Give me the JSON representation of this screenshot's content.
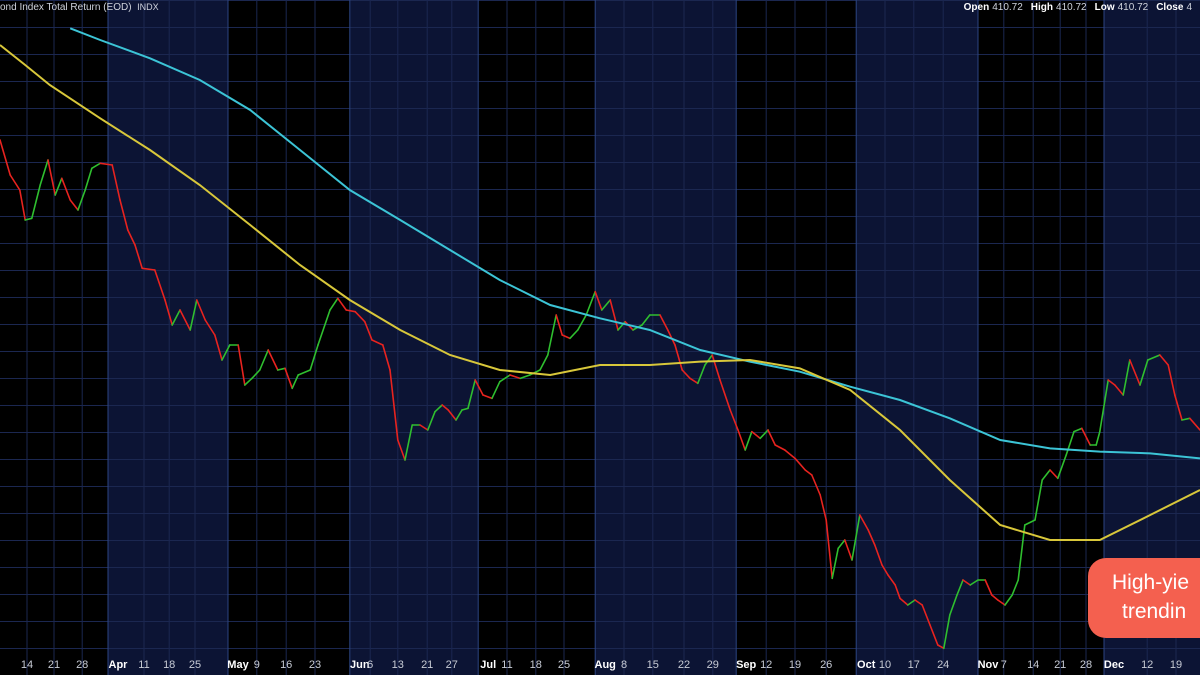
{
  "chart_data": {
    "type": "line",
    "title": "ond Index Total Return (EOD)",
    "exchange": "INDX",
    "ohlc": [
      {
        "label": "Open",
        "value": "410.72"
      },
      {
        "label": "High",
        "value": "410.72"
      },
      {
        "label": "Low",
        "value": "410.72"
      },
      {
        "label": "Close",
        "value": "4"
      }
    ],
    "annotation": [
      "High-yie",
      "trendin"
    ],
    "xlim": [
      0,
      200
    ],
    "ylim": [
      379,
      460
    ],
    "xticks": [
      {
        "value": 4.5,
        "label": "14"
      },
      {
        "value": 9,
        "label": "21"
      },
      {
        "value": 13.7,
        "label": "28"
      },
      {
        "value": 18,
        "label": "Apr"
      },
      {
        "value": 24,
        "label": "11"
      },
      {
        "value": 28.2,
        "label": "18"
      },
      {
        "value": 32.5,
        "label": "25"
      },
      {
        "value": 38,
        "label": "May"
      },
      {
        "value": 42.8,
        "label": "9"
      },
      {
        "value": 47.7,
        "label": "16"
      },
      {
        "value": 52.5,
        "label": "23"
      },
      {
        "value": 58.3,
        "label": "Jun"
      },
      {
        "value": 61.7,
        "label": "6"
      },
      {
        "value": 66.3,
        "label": "13"
      },
      {
        "value": 71.2,
        "label": "21"
      },
      {
        "value": 75.3,
        "label": "27"
      },
      {
        "value": 79.7,
        "label": "Jul"
      },
      {
        "value": 84.5,
        "label": "11"
      },
      {
        "value": 89.3,
        "label": "18"
      },
      {
        "value": 94,
        "label": "25"
      },
      {
        "value": 99.2,
        "label": "Aug"
      },
      {
        "value": 104,
        "label": "8"
      },
      {
        "value": 108.8,
        "label": "15"
      },
      {
        "value": 114,
        "label": "22"
      },
      {
        "value": 118.8,
        "label": "29"
      },
      {
        "value": 122.7,
        "label": "Sep"
      },
      {
        "value": 127.7,
        "label": "12"
      },
      {
        "value": 132.5,
        "label": "19"
      },
      {
        "value": 137.7,
        "label": "26"
      },
      {
        "value": 142.7,
        "label": "Oct"
      },
      {
        "value": 147.5,
        "label": "10"
      },
      {
        "value": 152.3,
        "label": "17"
      },
      {
        "value": 157.2,
        "label": "24"
      },
      {
        "value": 163,
        "label": "Nov"
      },
      {
        "value": 167.3,
        "label": "7"
      },
      {
        "value": 172.2,
        "label": "14"
      },
      {
        "value": 176.7,
        "label": "21"
      },
      {
        "value": 181,
        "label": "28"
      },
      {
        "value": 184,
        "label": "Dec"
      },
      {
        "value": 191.2,
        "label": "12"
      },
      {
        "value": 196,
        "label": "19"
      }
    ],
    "series": [
      {
        "kind": "price",
        "up_color": "#2fbf2f",
        "down_color": "#e8231f",
        "x": [
          0,
          1.7,
          3.3,
          4.2,
          5.3,
          6.7,
          8,
          9.2,
          10.3,
          11.7,
          13,
          14.2,
          15.3,
          16.7,
          18.7,
          20,
          21.3,
          22.5,
          23.7,
          25.8,
          27.5,
          28.7,
          30,
          31.7,
          32.8,
          34.2,
          35.8,
          37,
          38.3,
          39.7,
          40.8,
          42,
          43.3,
          44.7,
          46.3,
          47.5,
          48.7,
          49.7,
          51.7,
          53,
          55,
          56.3,
          57.7,
          59.2,
          60.8,
          62,
          63.8,
          65,
          66.3,
          67.5,
          68.7,
          70,
          71.3,
          72.5,
          73.7,
          74.7,
          76,
          77,
          78,
          79.2,
          80.5,
          82,
          83.3,
          85,
          86.7,
          88.3,
          90,
          91.3,
          92.7,
          93.7,
          95,
          96.3,
          97.7,
          99.2,
          100.3,
          101.7,
          103,
          104.2,
          105.5,
          107,
          108.3,
          110,
          111.3,
          112.5,
          113.7,
          115,
          116.3,
          117.5,
          118.7,
          120,
          121.7,
          123,
          124.2,
          125.3,
          126.7,
          128,
          129.2,
          130.8,
          132.5,
          134.2,
          135.3,
          136.7,
          137.7,
          138.7,
          139.7,
          140.8,
          142,
          143.3,
          144.7,
          145.8,
          147,
          148,
          149.2,
          150,
          151.3,
          152.5,
          153.7,
          155,
          156.3,
          157.3,
          158.3,
          159.5,
          160.5,
          161.7,
          163,
          164.2,
          165.3,
          166.3,
          167.5,
          168.7,
          169.7,
          170.8,
          172.5,
          173.7,
          175,
          176.3,
          177.7,
          179,
          180.3,
          181.7,
          182.7,
          183.3,
          184.7,
          185.8,
          187.2,
          188.3,
          190,
          191.3,
          193.3,
          194.7,
          195.8,
          197,
          198.3,
          200
        ],
        "values": [
          443.2,
          439,
          437.2,
          433.6,
          433.8,
          437.8,
          440.8,
          436.6,
          438.6,
          436,
          434.8,
          437.2,
          439.8,
          440.4,
          440.2,
          436,
          432.4,
          430.6,
          427.8,
          427.6,
          424,
          421,
          422.8,
          420.4,
          424,
          421.6,
          419.8,
          416.8,
          418.6,
          418.6,
          413.8,
          414.6,
          415.6,
          418,
          415.6,
          415.8,
          413.4,
          415,
          415.6,
          418.6,
          422.8,
          424.2,
          422.8,
          422.6,
          421.4,
          419.2,
          418.6,
          415.6,
          407.2,
          404.8,
          409,
          409,
          408.4,
          410.6,
          411.4,
          410.8,
          409.6,
          410.8,
          411,
          414.4,
          412.6,
          412.2,
          414.2,
          415,
          414.6,
          415,
          415.6,
          417.4,
          422.2,
          419.8,
          419.4,
          420.4,
          422.2,
          425,
          422.8,
          424,
          420.4,
          421.4,
          420.4,
          421,
          422.2,
          422.2,
          420.4,
          418.6,
          415.6,
          414.6,
          414,
          416.2,
          417.4,
          414.4,
          410.8,
          408.4,
          406,
          408.2,
          407.4,
          408.4,
          406.6,
          406,
          405,
          403.6,
          403,
          400.6,
          397.6,
          390.6,
          394.2,
          395.2,
          392.8,
          398.2,
          396.4,
          394.6,
          392.2,
          391,
          389.8,
          388.2,
          387.4,
          388,
          387.4,
          385,
          382.6,
          382.2,
          386.2,
          388.6,
          390.4,
          389.8,
          390.4,
          390.4,
          388.6,
          388,
          387.4,
          388.6,
          390.4,
          397,
          397.6,
          402.4,
          403.6,
          402.6,
          405.4,
          408.2,
          408.6,
          406.6,
          406.6,
          408.2,
          414.4,
          413.8,
          412.6,
          416.8,
          413.8,
          416.8,
          417.4,
          416.2,
          412.6,
          409.6,
          409.8,
          408.4
        ]
      },
      {
        "kind": "average",
        "color": "#3cc4d6",
        "x": [
          11.7,
          16.7,
          25,
          33.3,
          41.7,
          50,
          58.3,
          66.7,
          75,
          83.3,
          91.7,
          100,
          108.3,
          116.7,
          125,
          133.3,
          141.7,
          150,
          158.3,
          166.7,
          175,
          183.3,
          191.7,
          200
        ],
        "values": [
          456.6,
          455.2,
          453,
          450.4,
          446.8,
          442,
          437.2,
          433.6,
          430,
          426.4,
          423.4,
          421.8,
          420.4,
          418,
          416.6,
          415.4,
          413.6,
          412,
          409.8,
          407.2,
          406.2,
          405.8,
          405.6,
          405
        ]
      },
      {
        "kind": "average",
        "color": "#d8c73a",
        "x": [
          0,
          4.2,
          8.3,
          16.7,
          25,
          33.3,
          41.7,
          50,
          58.3,
          66.7,
          75,
          83.3,
          91.7,
          100,
          108.3,
          116.7,
          125,
          133.3,
          141.7,
          150,
          158.3,
          166.7,
          175,
          183.3,
          191.7,
          200
        ],
        "values": [
          454.6,
          452.2,
          449.8,
          445.8,
          442,
          437.8,
          433,
          428.2,
          424,
          420.4,
          417.4,
          415.6,
          415,
          416.2,
          416.2,
          416.6,
          416.8,
          415.8,
          413.2,
          408.4,
          402.4,
          397,
          395.2,
          395.2,
          398.2,
          401.2
        ]
      }
    ]
  }
}
